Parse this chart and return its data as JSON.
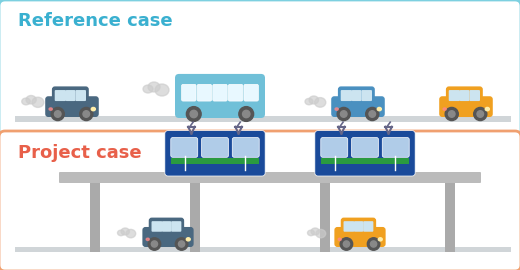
{
  "title_ref": "Reference case",
  "title_proj": "Project case",
  "title_ref_color": "#3ab0d0",
  "title_proj_color": "#e8604a",
  "bg_color": "#f5fbff",
  "ref_box_border": "#7dd0e0",
  "proj_box_border": "#f0a070",
  "box_bg": "#ffffff",
  "road_color": "#d0d5d8",
  "car_dark_color": "#4a6880",
  "car_blue_color": "#4a90c0",
  "car_orange_color": "#f0a020",
  "bus_color": "#70c0d8",
  "train_body_color": "#1a4a9a",
  "train_stripe_color": "#2a9a40",
  "train_window_color": "#b0cce8",
  "exhaust_color": "#cccccc",
  "pillar_color": "#aaaaaa",
  "platform_color": "#bbbbbb",
  "wheel_color": "#555555",
  "wheel_cap_color": "#888888"
}
